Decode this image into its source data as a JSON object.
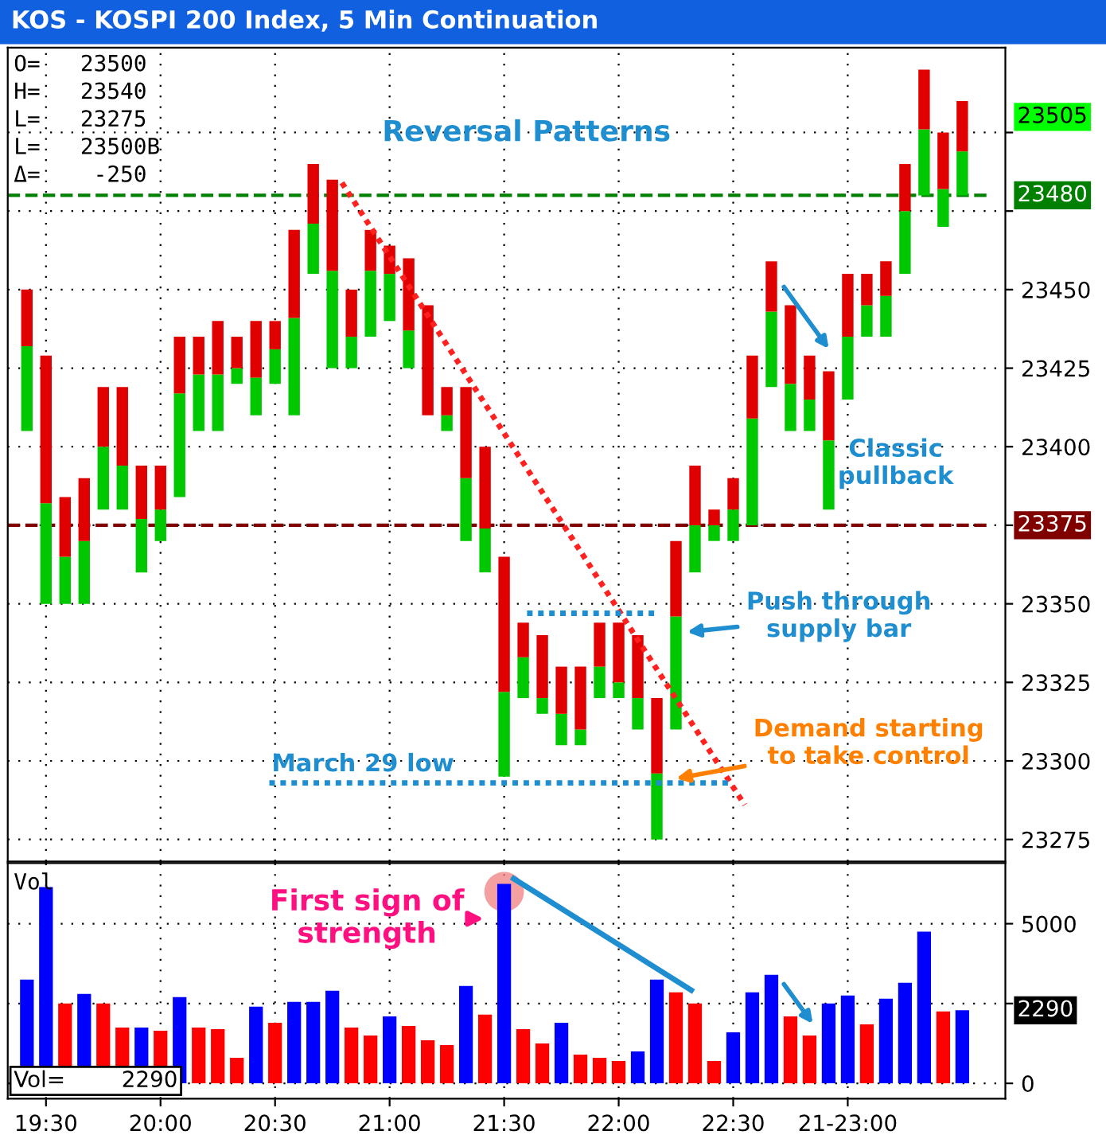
{
  "chart_data": [
    {
      "type": "bar",
      "title": "KOS - KOSPI 200 Index, 5 Min Continuation",
      "x": [
        19.4167,
        19.5,
        19.5833,
        19.6667,
        19.75,
        19.8333,
        19.9167,
        20,
        20.0833,
        20.1667,
        20.25,
        20.3333,
        20.4167,
        20.5,
        20.5833,
        20.6667,
        20.75,
        20.8333,
        20.9167,
        21,
        21.0833,
        21.1667,
        21.25,
        21.3333,
        21.4167,
        21.5,
        21.5833,
        21.6667,
        21.75,
        21.8333,
        21.9167,
        22,
        22.0833,
        22.1667,
        22.25,
        22.3333,
        22.4167,
        22.5,
        22.5833,
        22.6667,
        22.75,
        22.8333,
        22.9167,
        23,
        23.0833,
        23.1667,
        23.25,
        23.3333,
        23.4167,
        23.5
      ],
      "series": [
        {
          "type": "bar",
          "color": "#00c800",
          "base": [
            23405,
            23350,
            23350,
            23350,
            23380,
            23380,
            23360,
            23370,
            23384,
            23405,
            23405,
            23420,
            23410,
            23420,
            23410,
            23455,
            23425,
            23425,
            23435,
            23440,
            23425,
            null,
            23405,
            23370,
            23360,
            23295,
            23320,
            23315,
            23305,
            23305,
            23320,
            23320,
            23310,
            23275,
            23310,
            23360,
            23370,
            23370,
            23375,
            23419,
            23405,
            23405,
            23380,
            23415,
            23435,
            23435,
            23455,
            23480,
            23470,
            23480
          ],
          "values": [
            27,
            32,
            15,
            20,
            20,
            14,
            17,
            10,
            33,
            18,
            18,
            5,
            12,
            11,
            31,
            16,
            31,
            10,
            21,
            15,
            12,
            null,
            5,
            20,
            14,
            27,
            13,
            5,
            10,
            5,
            10,
            5,
            10,
            21,
            36,
            15,
            5,
            10,
            34,
            24,
            15,
            10,
            22,
            20,
            10,
            13,
            20,
            21,
            12,
            14
          ]
        },
        {
          "type": "bar",
          "color": "#e00000",
          "base": [
            23432,
            23382,
            23365,
            23370,
            23400,
            23394,
            23377,
            23380,
            23417,
            23423,
            23423,
            23425,
            23422,
            23431,
            23441,
            23471,
            23456,
            23435,
            23456,
            23455,
            23437,
            23410,
            23410,
            23390,
            23374,
            23322,
            23333,
            23320,
            23315,
            23310,
            23330,
            23325,
            23320,
            23296,
            23346,
            23375,
            23375,
            23380,
            23409,
            23443,
            23420,
            23415,
            23402,
            23435,
            23445,
            23448,
            23475,
            23501,
            23482,
            23494
          ],
          "values": [
            18,
            47,
            19,
            20,
            19,
            25,
            17,
            14,
            18,
            12,
            17,
            10,
            18,
            9,
            28,
            19,
            29,
            15,
            13,
            9,
            23,
            35,
            9,
            29,
            26,
            43,
            11,
            20,
            15,
            20,
            14,
            19,
            20,
            24,
            24,
            19,
            5,
            10,
            20,
            16,
            25,
            14,
            22,
            20,
            10,
            11,
            15,
            19,
            18,
            16
          ]
        },
        {
          "type": "line",
          "color": "#ff2020",
          "line_style": "dotted",
          "x": [
            20.7917,
            22.55
          ],
          "values": [
            23484,
            23286
          ]
        },
        {
          "type": "line",
          "color": "#1e8ed0",
          "line_style": "dotted",
          "x": [
            21.6,
            22.175
          ],
          "values": [
            23347,
            23347
          ]
        },
        {
          "type": "line",
          "color": "#1e8ed0",
          "line_style": "dotted",
          "x": [
            20.475,
            22.48
          ],
          "values": [
            23293,
            23293
          ]
        }
      ],
      "xlim": [
        19.333,
        23.688
      ],
      "xticks": [
        {
          "value": 19.5,
          "label": null
        },
        {
          "value": 20,
          "label": null
        },
        {
          "value": 20.5,
          "label": null
        },
        {
          "value": 21,
          "label": null
        },
        {
          "value": 21.5,
          "label": null
        },
        {
          "value": 22,
          "label": null
        },
        {
          "value": 22.5,
          "label": null
        },
        {
          "value": 23,
          "label": null
        }
      ],
      "ylim": [
        23268,
        23527
      ],
      "yticks": [
        23275,
        23300,
        23325,
        23350,
        23375,
        23400,
        23425,
        23450,
        {
          "value": 23475,
          "label": null
        },
        {
          "value": 23500,
          "label": null
        }
      ],
      "ref_lines": [
        {
          "axis": "y",
          "value": 23480,
          "label": "23480",
          "color": "#008000",
          "line_style": "dashed"
        },
        {
          "axis": "y",
          "value": 23375,
          "label": "23375",
          "color": "#800000",
          "line_style": "dashed"
        }
      ],
      "annotations": [
        "O=   23500",
        "H=   23540",
        "L=   23275",
        "L=   23500B",
        "Δ=    -250",
        "Reversal Patterns",
        "March 29 low",
        "Push through\nsupply bar",
        "Demand starting\nto take control",
        "Classic\npullback",
        "23505"
      ],
      "grid": true,
      "tick_labels": "y"
    },
    {
      "type": "bar",
      "x": [
        19.4167,
        19.5,
        19.5833,
        19.6667,
        19.75,
        19.8333,
        19.9167,
        20,
        20.0833,
        20.1667,
        20.25,
        20.3333,
        20.4167,
        20.5,
        20.5833,
        20.6667,
        20.75,
        20.8333,
        20.9167,
        21,
        21.0833,
        21.1667,
        21.25,
        21.3333,
        21.4167,
        21.5,
        21.5833,
        21.6667,
        21.75,
        21.8333,
        21.9167,
        22,
        22.0833,
        22.1667,
        22.25,
        22.3333,
        22.4167,
        22.5,
        22.5833,
        22.6667,
        22.75,
        22.8333,
        22.9167,
        23,
        23.0833,
        23.1667,
        23.25,
        23.3333,
        23.4167,
        23.5
      ],
      "values": [
        3250,
        6150,
        2500,
        2800,
        2500,
        1750,
        1750,
        1650,
        2700,
        1750,
        1700,
        800,
        2400,
        1900,
        2550,
        2550,
        2900,
        1750,
        1500,
        2100,
        1800,
        1350,
        1200,
        3050,
        2150,
        6250,
        1700,
        1250,
        1900,
        900,
        800,
        700,
        1000,
        3250,
        2850,
        2500,
        700,
        1600,
        2850,
        3400,
        2100,
        1500,
        2500,
        2750,
        1850,
        2650,
        3150,
        4750,
        2250,
        2290
      ],
      "colors": [
        "#0000ff",
        "#0000ff",
        "#ff0000",
        "#0000ff",
        "#ff0000",
        "#ff0000",
        "#0000ff",
        "#ff0000",
        "#0000ff",
        "#ff0000",
        "#ff0000",
        "#ff0000",
        "#0000ff",
        "#ff0000",
        "#0000ff",
        "#0000ff",
        "#0000ff",
        "#ff0000",
        "#ff0000",
        "#0000ff",
        "#ff0000",
        "#ff0000",
        "#ff0000",
        "#0000ff",
        "#ff0000",
        "#0000ff",
        "#ff0000",
        "#ff0000",
        "#0000ff",
        "#ff0000",
        "#ff0000",
        "#ff0000",
        "#0000ff",
        "#0000ff",
        "#ff0000",
        "#ff0000",
        "#ff0000",
        "#0000ff",
        "#0000ff",
        "#0000ff",
        "#ff0000",
        "#ff0000",
        "#0000ff",
        "#0000ff",
        "#ff0000",
        "#0000ff",
        "#0000ff",
        "#0000ff",
        "#ff0000",
        "#0000ff"
      ],
      "series": [
        {
          "type": "scatter",
          "color": "#f08080",
          "marker": "circle",
          "x": [
            21.5
          ],
          "values": [
            6000
          ]
        },
        {
          "type": "line",
          "color": "#1e8ed0",
          "x": [
            21.5417,
            22.3167
          ],
          "values": [
            6410,
            2920
          ]
        }
      ],
      "xlim": [
        19.333,
        23.688
      ],
      "xticks": [
        {
          "value": 19.5,
          "label": "19:30"
        },
        {
          "value": 20,
          "label": "20:00"
        },
        {
          "value": 20.5,
          "label": "20:30"
        },
        {
          "value": 21,
          "label": "21:00"
        },
        {
          "value": 21.5,
          "label": "21:30"
        },
        {
          "value": 22,
          "label": "22:00"
        },
        {
          "value": 22.5,
          "label": "22:30"
        },
        {
          "value": 23,
          "label": "21-23:00"
        }
      ],
      "ylim": [
        -480,
        6900
      ],
      "yticks": [
        0,
        {
          "value": 2500,
          "label": null
        },
        5000
      ],
      "annotations": [
        "Vol",
        "Vol=        2290",
        "First sign of\nstrength",
        "2290"
      ],
      "grid": true
    }
  ]
}
